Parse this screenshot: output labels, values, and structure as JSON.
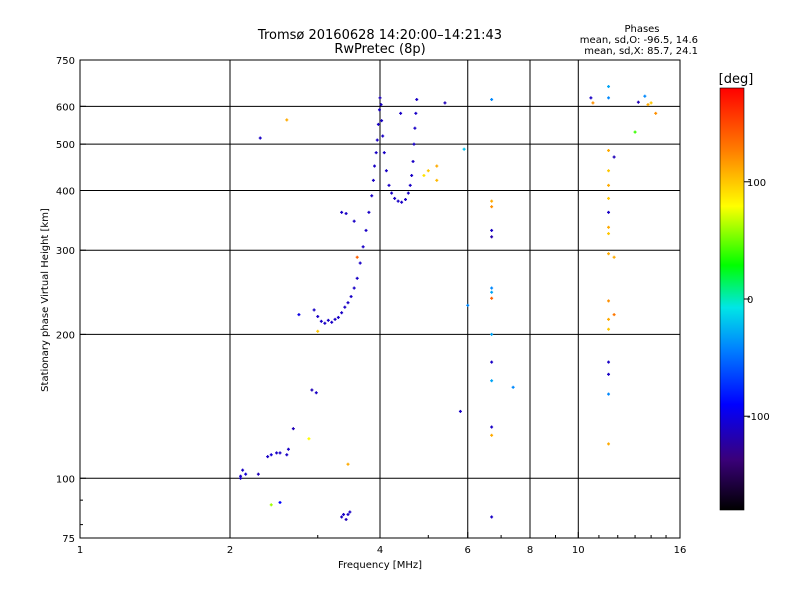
{
  "chart_data": {
    "type": "scatter",
    "title_line1": "Tromsø 20160628 14:20:00–14:21:43",
    "title_line2": "RwPretec (8p)",
    "phases": {
      "header": "Phases",
      "line_o": "mean, sd,O: -96.5, 14.6",
      "line_x": "mean, sd,X:  85.7, 24.1"
    },
    "xlabel": "Frequency [MHz]",
    "ylabel": "Stationary phase Virtual Height [km]",
    "x_scale": "log",
    "y_scale": "log",
    "xlim": [
      1,
      16
    ],
    "ylim": [
      75,
      750
    ],
    "x_ticks": [
      {
        "value": 1,
        "label": "1"
      },
      {
        "value": 2,
        "label": "2"
      },
      {
        "value": 4,
        "label": "4"
      },
      {
        "value": 6,
        "label": "6"
      },
      {
        "value": 8,
        "label": "8"
      },
      {
        "value": 10,
        "label": "10"
      },
      {
        "value": 16,
        "label": "16"
      }
    ],
    "y_ticks": [
      {
        "value": 75,
        "label": "75"
      },
      {
        "value": 100,
        "label": "100"
      },
      {
        "value": 200,
        "label": "200"
      },
      {
        "value": 300,
        "label": "300"
      },
      {
        "value": 400,
        "label": "400"
      },
      {
        "value": 500,
        "label": "500"
      },
      {
        "value": 600,
        "label": "600"
      },
      {
        "value": 750,
        "label": "750"
      }
    ],
    "grid_x": [
      2,
      4,
      6,
      8,
      10
    ],
    "grid_y": [
      100,
      200,
      300,
      400,
      500,
      600
    ],
    "colorbar": {
      "unit": "[deg]",
      "range": [
        -180,
        180
      ],
      "ticks": [
        {
          "value": 100,
          "label": "100"
        },
        {
          "value": 0,
          "label": "0"
        },
        {
          "value": -100,
          "label": "-100"
        }
      ]
    },
    "points": [
      [
        2.1,
        101,
        -110
      ],
      [
        2.12,
        104,
        -110
      ],
      [
        2.15,
        102,
        -105
      ],
      [
        2.1,
        100,
        -110
      ],
      [
        2.28,
        102,
        -115
      ],
      [
        2.38,
        111,
        -110
      ],
      [
        2.42,
        112,
        -105
      ],
      [
        2.48,
        113,
        -110
      ],
      [
        2.52,
        113,
        -110
      ],
      [
        2.6,
        112,
        -110
      ],
      [
        2.62,
        115,
        -110
      ],
      [
        2.68,
        127,
        -115
      ],
      [
        2.42,
        88,
        60
      ],
      [
        2.52,
        89,
        -90
      ],
      [
        2.88,
        121,
        80
      ],
      [
        2.92,
        153,
        -115
      ],
      [
        2.98,
        151,
        -110
      ],
      [
        3.45,
        107,
        110
      ],
      [
        3.35,
        83,
        -110
      ],
      [
        3.38,
        84,
        -110
      ],
      [
        3.42,
        82,
        -115
      ],
      [
        3.45,
        84,
        -110
      ],
      [
        3.48,
        85,
        -110
      ],
      [
        2.3,
        515,
        -110
      ],
      [
        2.6,
        562,
        110
      ],
      [
        2.75,
        220,
        -100
      ],
      [
        3.0,
        203,
        100
      ],
      [
        2.95,
        225,
        -110
      ],
      [
        3.0,
        218,
        -110
      ],
      [
        3.05,
        213,
        -110
      ],
      [
        3.1,
        211,
        -110
      ],
      [
        3.15,
        214,
        -110
      ],
      [
        3.2,
        212,
        -110
      ],
      [
        3.25,
        215,
        -110
      ],
      [
        3.3,
        217,
        -110
      ],
      [
        3.35,
        222,
        -110
      ],
      [
        3.4,
        228,
        -110
      ],
      [
        3.45,
        233,
        -110
      ],
      [
        3.5,
        240,
        -110
      ],
      [
        3.55,
        250,
        -110
      ],
      [
        3.6,
        262,
        -110
      ],
      [
        3.65,
        282,
        -110
      ],
      [
        3.7,
        305,
        -110
      ],
      [
        3.75,
        330,
        -110
      ],
      [
        3.8,
        360,
        -110
      ],
      [
        3.85,
        390,
        -110
      ],
      [
        3.88,
        420,
        -110
      ],
      [
        3.9,
        450,
        -110
      ],
      [
        3.93,
        480,
        -110
      ],
      [
        3.95,
        510,
        -110
      ],
      [
        3.97,
        550,
        -110
      ],
      [
        3.99,
        590,
        -110
      ],
      [
        4.0,
        625,
        -115
      ],
      [
        4.02,
        605,
        -110
      ],
      [
        4.03,
        560,
        -110
      ],
      [
        4.05,
        520,
        -110
      ],
      [
        4.08,
        480,
        -110
      ],
      [
        4.12,
        440,
        -110
      ],
      [
        4.17,
        410,
        -110
      ],
      [
        4.22,
        395,
        -110
      ],
      [
        4.28,
        385,
        -110
      ],
      [
        4.35,
        380,
        -110
      ],
      [
        4.42,
        378,
        -110
      ],
      [
        4.5,
        383,
        -110
      ],
      [
        4.56,
        395,
        -110
      ],
      [
        4.6,
        410,
        -110
      ],
      [
        4.63,
        430,
        -110
      ],
      [
        4.66,
        460,
        -110
      ],
      [
        4.68,
        500,
        -110
      ],
      [
        4.7,
        540,
        -110
      ],
      [
        4.72,
        580,
        -110
      ],
      [
        4.74,
        620,
        -110
      ],
      [
        3.35,
        360,
        -110
      ],
      [
        3.42,
        358,
        -110
      ],
      [
        3.55,
        345,
        -110
      ],
      [
        3.6,
        290,
        140
      ],
      [
        4.4,
        580,
        -110
      ],
      [
        4.9,
        430,
        90
      ],
      [
        5.0,
        440,
        100
      ],
      [
        5.2,
        450,
        110
      ],
      [
        5.2,
        420,
        105
      ],
      [
        5.4,
        610,
        -115
      ],
      [
        5.9,
        488,
        -20
      ],
      [
        6.0,
        230,
        -40
      ],
      [
        5.8,
        138,
        -110
      ],
      [
        6.7,
        620,
        -40
      ],
      [
        6.7,
        380,
        110
      ],
      [
        6.7,
        370,
        120
      ],
      [
        6.7,
        330,
        -110
      ],
      [
        6.7,
        320,
        -120
      ],
      [
        6.7,
        250,
        -40
      ],
      [
        6.7,
        245,
        -30
      ],
      [
        6.7,
        238,
        140
      ],
      [
        6.7,
        200,
        -30
      ],
      [
        6.7,
        175,
        -110
      ],
      [
        6.7,
        160,
        -30
      ],
      [
        6.7,
        128,
        -110
      ],
      [
        6.7,
        123,
        110
      ],
      [
        6.7,
        83,
        -110
      ],
      [
        7.4,
        155,
        -40
      ],
      [
        10.6,
        625,
        -110
      ],
      [
        10.7,
        610,
        120
      ],
      [
        11.5,
        660,
        -30
      ],
      [
        11.5,
        625,
        -40
      ],
      [
        11.5,
        485,
        110
      ],
      [
        11.5,
        440,
        100
      ],
      [
        11.5,
        410,
        110
      ],
      [
        11.5,
        385,
        100
      ],
      [
        11.5,
        360,
        -110
      ],
      [
        11.5,
        335,
        110
      ],
      [
        11.5,
        325,
        100
      ],
      [
        11.5,
        295,
        110
      ],
      [
        11.5,
        235,
        120
      ],
      [
        11.5,
        215,
        110
      ],
      [
        11.5,
        205,
        100
      ],
      [
        11.5,
        175,
        -110
      ],
      [
        11.5,
        165,
        -110
      ],
      [
        11.5,
        150,
        -40
      ],
      [
        11.5,
        118,
        110
      ],
      [
        11.8,
        470,
        -115
      ],
      [
        11.8,
        290,
        110
      ],
      [
        11.8,
        220,
        130
      ],
      [
        13.0,
        530,
        40
      ],
      [
        13.2,
        612,
        -115
      ],
      [
        13.6,
        630,
        -40
      ],
      [
        13.8,
        605,
        110
      ],
      [
        14.0,
        610,
        100
      ],
      [
        14.3,
        580,
        120
      ]
    ]
  }
}
